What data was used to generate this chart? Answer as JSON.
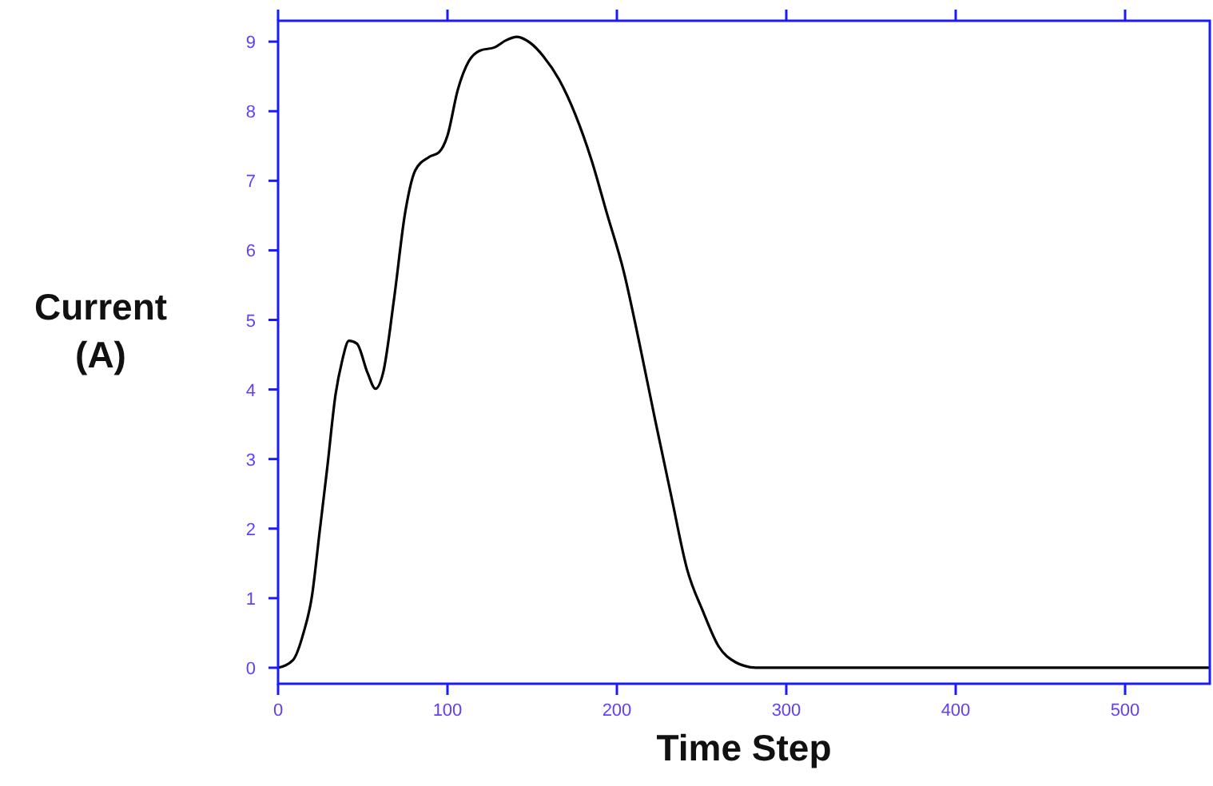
{
  "chart_data": {
    "type": "line",
    "xlabel": "Time Step",
    "ylabel": "Current\n(A)",
    "xlim": [
      0,
      550
    ],
    "ylim": [
      -0.23,
      9.3
    ],
    "xticks": [
      0,
      100,
      200,
      300,
      400,
      500
    ],
    "yticks": [
      0,
      1,
      2,
      3,
      4,
      5,
      6,
      7,
      8,
      9
    ],
    "grid": false,
    "marker": "none",
    "line_style": "solid",
    "series": [
      {
        "color": "#000000",
        "x": [
          0,
          8.8,
          15,
          20,
          24.5,
          29,
          34,
          37.7,
          41.8,
          46.5,
          52.8,
          57.5,
          62,
          68.5,
          75,
          81,
          89,
          95,
          100,
          106,
          112.6,
          119,
          128,
          134.6,
          141,
          149,
          156.6,
          166,
          175.5,
          185,
          194,
          204,
          213,
          222.6,
          232,
          241.5,
          251,
          260,
          270,
          275,
          282,
          550
        ],
        "values": [
          0,
          0.11,
          0.5,
          1.03,
          1.95,
          2.87,
          3.94,
          4.4,
          4.7,
          4.66,
          4.24,
          4.01,
          4.24,
          5.31,
          6.54,
          7.15,
          7.34,
          7.41,
          7.65,
          8.3,
          8.72,
          8.87,
          8.92,
          9.02,
          9.07,
          8.98,
          8.79,
          8.45,
          7.95,
          7.3,
          6.54,
          5.7,
          4.7,
          3.56,
          2.48,
          1.41,
          0.8,
          0.31,
          0.08,
          0.03,
          0,
          0
        ]
      }
    ]
  }
}
